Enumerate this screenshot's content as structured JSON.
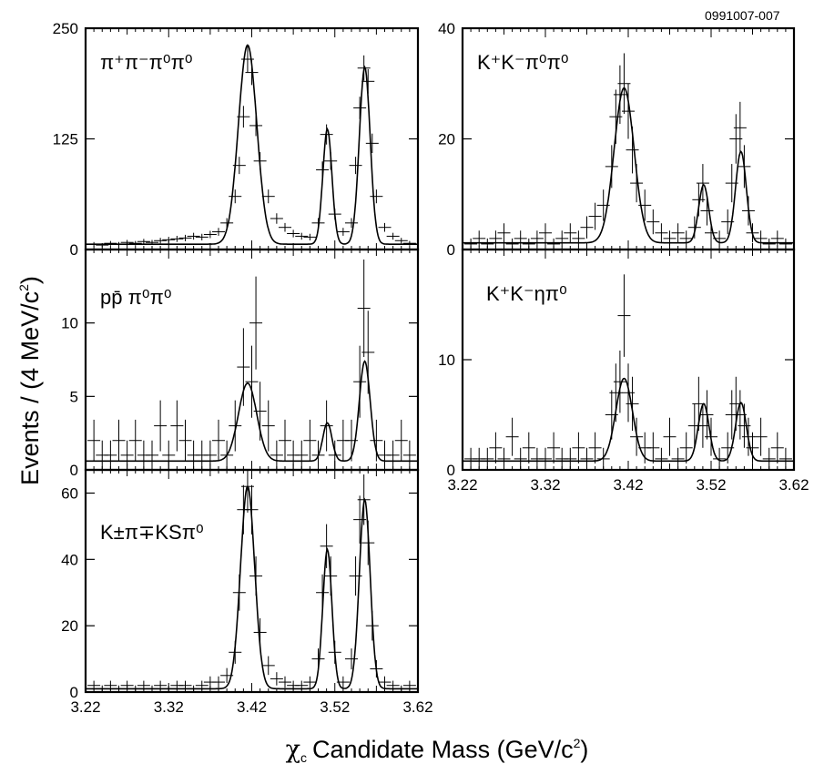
{
  "figure_code": "0991007-007",
  "ylabel": "Events / (4 MeV/c",
  "ylabel_sup": "2",
  "ylabel_end": ")",
  "xlabel": "Candidate Mass (GeV/c",
  "xlabel_chi": "χ",
  "xlabel_sub": "c",
  "xlabel_sup": "2",
  "xlabel_end": ")",
  "colors": {
    "line": "#000000",
    "background": "#ffffff"
  },
  "chart_data": [
    {
      "type": "histogram-with-fit",
      "panel_label": "π⁺π⁻π⁰π⁰",
      "xlim": [
        3.22,
        3.62
      ],
      "ylim": [
        0,
        250
      ],
      "yticks": [
        0,
        125,
        250
      ],
      "xticks": [],
      "peaks": [
        [
          3.415,
          225,
          0.011
        ],
        [
          3.511,
          130,
          0.0055
        ],
        [
          3.556,
          200,
          0.0065
        ]
      ],
      "fit_background": 6,
      "data_points": [
        [
          3.23,
          6
        ],
        [
          3.24,
          5
        ],
        [
          3.25,
          7
        ],
        [
          3.26,
          6
        ],
        [
          3.27,
          8
        ],
        [
          3.28,
          7
        ],
        [
          3.29,
          9
        ],
        [
          3.3,
          8
        ],
        [
          3.31,
          10
        ],
        [
          3.32,
          11
        ],
        [
          3.33,
          12
        ],
        [
          3.34,
          13
        ],
        [
          3.35,
          15
        ],
        [
          3.36,
          14
        ],
        [
          3.37,
          17
        ],
        [
          3.38,
          20
        ],
        [
          3.39,
          30
        ],
        [
          3.4,
          60
        ],
        [
          3.405,
          95
        ],
        [
          3.41,
          150
        ],
        [
          3.415,
          215
        ],
        [
          3.42,
          200
        ],
        [
          3.425,
          140
        ],
        [
          3.43,
          100
        ],
        [
          3.44,
          60
        ],
        [
          3.45,
          35
        ],
        [
          3.46,
          25
        ],
        [
          3.47,
          18
        ],
        [
          3.48,
          15
        ],
        [
          3.49,
          14
        ],
        [
          3.5,
          30
        ],
        [
          3.505,
          90
        ],
        [
          3.51,
          130
        ],
        [
          3.515,
          100
        ],
        [
          3.52,
          40
        ],
        [
          3.53,
          20
        ],
        [
          3.54,
          30
        ],
        [
          3.545,
          95
        ],
        [
          3.55,
          160
        ],
        [
          3.555,
          205
        ],
        [
          3.56,
          190
        ],
        [
          3.565,
          120
        ],
        [
          3.57,
          60
        ],
        [
          3.58,
          25
        ],
        [
          3.59,
          15
        ],
        [
          3.6,
          10
        ],
        [
          3.61,
          7
        ]
      ]
    },
    {
      "type": "histogram-with-fit",
      "panel_label": "pp̄ π⁰π⁰",
      "xlim": [
        3.22,
        3.62
      ],
      "ylim": [
        0,
        15
      ],
      "yticks": [
        0,
        5,
        10
      ],
      "xticks": [],
      "peaks": [
        [
          3.415,
          5.3,
          0.011
        ],
        [
          3.511,
          2.6,
          0.0055
        ],
        [
          3.556,
          6.8,
          0.0065
        ]
      ],
      "fit_background": 0.6,
      "data_points": [
        [
          3.23,
          2
        ],
        [
          3.24,
          1
        ],
        [
          3.25,
          1
        ],
        [
          3.26,
          2
        ],
        [
          3.27,
          1
        ],
        [
          3.28,
          2
        ],
        [
          3.29,
          1
        ],
        [
          3.3,
          1
        ],
        [
          3.31,
          3
        ],
        [
          3.32,
          1
        ],
        [
          3.33,
          3
        ],
        [
          3.34,
          2
        ],
        [
          3.35,
          1
        ],
        [
          3.36,
          1
        ],
        [
          3.37,
          1
        ],
        [
          3.38,
          2
        ],
        [
          3.39,
          1
        ],
        [
          3.4,
          3
        ],
        [
          3.41,
          7
        ],
        [
          3.42,
          6
        ],
        [
          3.425,
          10
        ],
        [
          3.43,
          4
        ],
        [
          3.44,
          3
        ],
        [
          3.45,
          1
        ],
        [
          3.46,
          2
        ],
        [
          3.47,
          1
        ],
        [
          3.48,
          1
        ],
        [
          3.49,
          2
        ],
        [
          3.5,
          1
        ],
        [
          3.51,
          3
        ],
        [
          3.52,
          1
        ],
        [
          3.53,
          2
        ],
        [
          3.54,
          2
        ],
        [
          3.55,
          6
        ],
        [
          3.555,
          11
        ],
        [
          3.56,
          8
        ],
        [
          3.57,
          2
        ],
        [
          3.58,
          1
        ],
        [
          3.59,
          1
        ],
        [
          3.6,
          2
        ],
        [
          3.61,
          1
        ]
      ]
    },
    {
      "type": "histogram-with-fit",
      "panel_label": "K±π∓KSπ⁰",
      "xlim": [
        3.22,
        3.62
      ],
      "ylim": [
        0,
        67
      ],
      "yticks": [
        0,
        20,
        40,
        60
      ],
      "xticks": [
        "3.22",
        "3.32",
        "3.42",
        "3.52",
        "3.62"
      ],
      "peaks": [
        [
          3.415,
          61,
          0.0085
        ],
        [
          3.511,
          42,
          0.0055
        ],
        [
          3.556,
          57,
          0.0065
        ]
      ],
      "fit_background": 1,
      "data_points": [
        [
          3.23,
          2
        ],
        [
          3.24,
          1
        ],
        [
          3.25,
          2
        ],
        [
          3.26,
          1
        ],
        [
          3.27,
          2
        ],
        [
          3.28,
          1
        ],
        [
          3.29,
          2
        ],
        [
          3.3,
          1
        ],
        [
          3.31,
          2
        ],
        [
          3.32,
          1
        ],
        [
          3.33,
          2
        ],
        [
          3.34,
          2
        ],
        [
          3.35,
          1
        ],
        [
          3.36,
          2
        ],
        [
          3.37,
          3
        ],
        [
          3.38,
          3
        ],
        [
          3.39,
          5
        ],
        [
          3.4,
          12
        ],
        [
          3.405,
          30
        ],
        [
          3.41,
          55
        ],
        [
          3.415,
          62
        ],
        [
          3.42,
          55
        ],
        [
          3.425,
          35
        ],
        [
          3.43,
          18
        ],
        [
          3.44,
          8
        ],
        [
          3.45,
          4
        ],
        [
          3.46,
          3
        ],
        [
          3.47,
          2
        ],
        [
          3.48,
          2
        ],
        [
          3.49,
          3
        ],
        [
          3.5,
          10
        ],
        [
          3.505,
          30
        ],
        [
          3.51,
          44
        ],
        [
          3.515,
          35
        ],
        [
          3.52,
          12
        ],
        [
          3.53,
          3
        ],
        [
          3.54,
          10
        ],
        [
          3.545,
          35
        ],
        [
          3.55,
          52
        ],
        [
          3.555,
          58
        ],
        [
          3.56,
          45
        ],
        [
          3.565,
          20
        ],
        [
          3.57,
          7
        ],
        [
          3.58,
          3
        ],
        [
          3.59,
          2
        ],
        [
          3.6,
          1
        ],
        [
          3.61,
          2
        ]
      ]
    },
    {
      "type": "histogram-with-fit",
      "panel_label": "K⁺K⁻π⁰π⁰",
      "xlim": [
        3.22,
        3.62
      ],
      "ylim": [
        0,
        40
      ],
      "yticks": [
        0,
        20,
        40
      ],
      "xticks": [],
      "peaks": [
        [
          3.415,
          28,
          0.012
        ],
        [
          3.511,
          10.5,
          0.006
        ],
        [
          3.556,
          16.5,
          0.0065
        ]
      ],
      "fit_background": 1.2,
      "data_points": [
        [
          3.23,
          1
        ],
        [
          3.24,
          2
        ],
        [
          3.25,
          1
        ],
        [
          3.26,
          2
        ],
        [
          3.27,
          3
        ],
        [
          3.28,
          1
        ],
        [
          3.29,
          2
        ],
        [
          3.3,
          1
        ],
        [
          3.31,
          2
        ],
        [
          3.32,
          3
        ],
        [
          3.33,
          1
        ],
        [
          3.34,
          2
        ],
        [
          3.35,
          3
        ],
        [
          3.36,
          2
        ],
        [
          3.37,
          4
        ],
        [
          3.38,
          6
        ],
        [
          3.39,
          8
        ],
        [
          3.4,
          15
        ],
        [
          3.405,
          24
        ],
        [
          3.41,
          28
        ],
        [
          3.415,
          30
        ],
        [
          3.42,
          25
        ],
        [
          3.425,
          18
        ],
        [
          3.43,
          12
        ],
        [
          3.44,
          8
        ],
        [
          3.45,
          5
        ],
        [
          3.46,
          3
        ],
        [
          3.47,
          2
        ],
        [
          3.48,
          3
        ],
        [
          3.49,
          2
        ],
        [
          3.5,
          4
        ],
        [
          3.505,
          9
        ],
        [
          3.51,
          12
        ],
        [
          3.515,
          7
        ],
        [
          3.52,
          3
        ],
        [
          3.53,
          2
        ],
        [
          3.54,
          5
        ],
        [
          3.545,
          12
        ],
        [
          3.55,
          20
        ],
        [
          3.555,
          22
        ],
        [
          3.56,
          15
        ],
        [
          3.565,
          7
        ],
        [
          3.57,
          3
        ],
        [
          3.58,
          2
        ],
        [
          3.59,
          1
        ],
        [
          3.6,
          2
        ],
        [
          3.61,
          1
        ]
      ]
    },
    {
      "type": "histogram-with-fit",
      "panel_label": "K⁺K⁻ηπ⁰",
      "xlim": [
        3.22,
        3.62
      ],
      "ylim": [
        0,
        20
      ],
      "yticks": [
        0,
        10
      ],
      "xticks": [
        "3.22",
        "3.32",
        "3.42",
        "3.52",
        "3.62"
      ],
      "peaks": [
        [
          3.415,
          7.5,
          0.01
        ],
        [
          3.511,
          5.2,
          0.0065
        ],
        [
          3.556,
          5.3,
          0.0065
        ]
      ],
      "fit_background": 0.8,
      "data_points": [
        [
          3.23,
          1
        ],
        [
          3.24,
          1
        ],
        [
          3.25,
          1
        ],
        [
          3.26,
          2
        ],
        [
          3.27,
          1
        ],
        [
          3.28,
          3
        ],
        [
          3.29,
          1
        ],
        [
          3.3,
          2
        ],
        [
          3.31,
          1
        ],
        [
          3.32,
          1
        ],
        [
          3.33,
          2
        ],
        [
          3.34,
          1
        ],
        [
          3.35,
          1
        ],
        [
          3.36,
          2
        ],
        [
          3.37,
          1
        ],
        [
          3.38,
          2
        ],
        [
          3.39,
          1
        ],
        [
          3.4,
          5
        ],
        [
          3.405,
          7
        ],
        [
          3.41,
          8
        ],
        [
          3.415,
          14
        ],
        [
          3.42,
          7
        ],
        [
          3.425,
          6
        ],
        [
          3.43,
          3
        ],
        [
          3.44,
          2
        ],
        [
          3.45,
          2
        ],
        [
          3.46,
          1
        ],
        [
          3.47,
          3
        ],
        [
          3.48,
          1
        ],
        [
          3.49,
          2
        ],
        [
          3.5,
          4
        ],
        [
          3.505,
          6
        ],
        [
          3.51,
          4
        ],
        [
          3.515,
          5
        ],
        [
          3.52,
          3
        ],
        [
          3.53,
          1
        ],
        [
          3.54,
          2
        ],
        [
          3.545,
          5
        ],
        [
          3.55,
          6
        ],
        [
          3.555,
          5
        ],
        [
          3.56,
          4
        ],
        [
          3.565,
          3
        ],
        [
          3.57,
          2
        ],
        [
          3.58,
          3
        ],
        [
          3.59,
          1
        ],
        [
          3.6,
          2
        ],
        [
          3.61,
          1
        ]
      ]
    }
  ]
}
